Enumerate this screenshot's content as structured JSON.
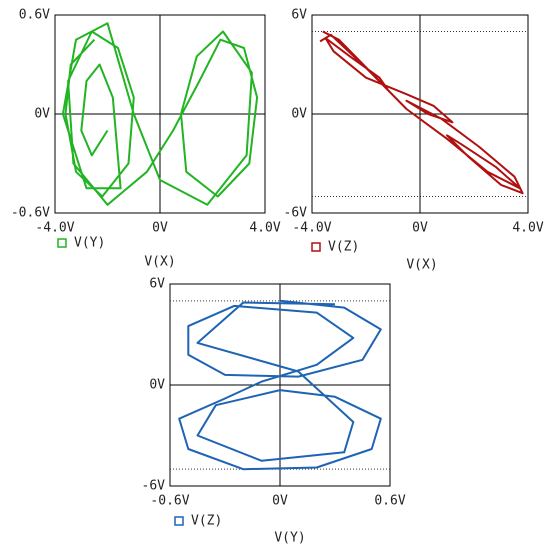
{
  "chart_data": [
    {
      "type": "line",
      "x_label": "V(X)",
      "zero_lines": true,
      "xlim": [
        -4,
        4
      ],
      "ylim": [
        -0.6,
        0.6
      ],
      "xticks": [
        {
          "value": -4,
          "label": "-4.0V"
        },
        {
          "value": 0,
          "label": "0V"
        },
        {
          "value": 4,
          "label": "4.0V"
        }
      ],
      "yticks": [
        {
          "value": -0.6,
          "label": "-0.6V"
        },
        {
          "value": 0,
          "label": "0V"
        },
        {
          "value": 0.6,
          "label": "0.6V"
        }
      ],
      "series": [
        {
          "name": "V(Y)",
          "color": "#22b422",
          "x": [
            -2.5,
            -3.4,
            -3.6,
            -3.2,
            -2.2,
            -1.2,
            -1.0,
            -1.6,
            -2.6,
            -3.5,
            -3.3,
            -2.0,
            -0.5,
            0.5,
            1.5,
            2.3,
            3.2,
            3.7,
            3.4,
            2.2,
            1.0,
            0.8,
            1.4,
            2.4,
            3.5,
            3.3,
            1.8,
            0.0,
            -1.0,
            -2.0,
            -3.2,
            -3.7,
            -2.8,
            -1.5,
            -1.8,
            -2.3,
            -2.8,
            -3.0,
            -2.6,
            -2.0
          ],
          "values": [
            0.45,
            0.3,
            0.0,
            -0.35,
            -0.5,
            -0.3,
            0.1,
            0.4,
            0.5,
            0.2,
            -0.3,
            -0.55,
            -0.35,
            -0.1,
            0.2,
            0.45,
            0.4,
            0.1,
            -0.3,
            -0.5,
            -0.35,
            0.0,
            0.35,
            0.5,
            0.25,
            -0.25,
            -0.55,
            -0.4,
            0.0,
            0.55,
            0.45,
            0.0,
            -0.45,
            -0.45,
            0.1,
            0.3,
            0.2,
            -0.1,
            -0.25,
            -0.1
          ]
        }
      ]
    },
    {
      "type": "line",
      "x_label": "V(X)",
      "zero_lines": true,
      "hlines": [
        5,
        -5
      ],
      "xlim": [
        -4,
        4
      ],
      "ylim": [
        -6,
        6
      ],
      "xticks": [
        {
          "value": -4,
          "label": "-4.0V"
        },
        {
          "value": 0,
          "label": "0V"
        },
        {
          "value": 4,
          "label": "4.0V"
        }
      ],
      "yticks": [
        {
          "value": -6,
          "label": "-6V"
        },
        {
          "value": 0,
          "label": "0V"
        },
        {
          "value": 6,
          "label": "6V"
        }
      ],
      "series": [
        {
          "name": "V(Z)",
          "color": "#b01010",
          "x": [
            -3.6,
            -3.0,
            -1.8,
            -1.2,
            -1.5,
            -2.6,
            -3.5,
            -3.2,
            -2.0,
            -0.5,
            0.5,
            1.2,
            0.3,
            -0.5,
            0.8,
            2.2,
            3.5,
            3.8,
            3.0,
            1.8,
            1.0,
            1.5,
            2.8,
            3.7,
            2.5,
            1.0,
            -0.5,
            -2.0,
            -3.3,
            -3.7
          ],
          "values": [
            5.0,
            4.5,
            2.5,
            1.5,
            2.2,
            3.5,
            4.6,
            3.8,
            2.2,
            1.2,
            0.5,
            -0.5,
            0.0,
            0.8,
            -0.3,
            -2.0,
            -3.8,
            -4.8,
            -4.3,
            -2.6,
            -1.3,
            -1.8,
            -3.2,
            -4.5,
            -3.5,
            -1.5,
            0.3,
            2.8,
            4.8,
            4.4
          ]
        }
      ]
    },
    {
      "type": "line",
      "x_label": "V(Y)",
      "zero_lines": true,
      "hlines": [
        5,
        -5
      ],
      "xlim": [
        -0.6,
        0.6
      ],
      "ylim": [
        -6,
        6
      ],
      "xticks": [
        {
          "value": -0.6,
          "label": "-0.6V"
        },
        {
          "value": 0,
          "label": "0V"
        },
        {
          "value": 0.6,
          "label": "0.6V"
        }
      ],
      "yticks": [
        {
          "value": -6,
          "label": "-6V"
        },
        {
          "value": 0,
          "label": "0V"
        },
        {
          "value": 6,
          "label": "6V"
        }
      ],
      "series": [
        {
          "name": "V(Z)",
          "color": "#1f64b4",
          "x": [
            0.0,
            0.35,
            0.55,
            0.45,
            0.1,
            -0.3,
            -0.5,
            -0.5,
            -0.25,
            0.2,
            0.4,
            0.2,
            -0.1,
            -0.3,
            -0.55,
            -0.5,
            -0.2,
            0.2,
            0.5,
            0.55,
            0.3,
            0.0,
            -0.35,
            -0.45,
            -0.1,
            0.35,
            0.4,
            0.1,
            -0.45,
            -0.2,
            0.3
          ],
          "values": [
            5.0,
            4.6,
            3.3,
            1.5,
            0.5,
            0.6,
            1.8,
            3.5,
            4.7,
            4.3,
            2.8,
            1.2,
            0.2,
            -0.8,
            -2.0,
            -3.8,
            -5.0,
            -4.9,
            -3.8,
            -2.0,
            -0.7,
            -0.3,
            -1.2,
            -3.0,
            -4.5,
            -4.0,
            -2.2,
            0.8,
            2.5,
            4.9,
            4.8
          ]
        }
      ]
    }
  ]
}
